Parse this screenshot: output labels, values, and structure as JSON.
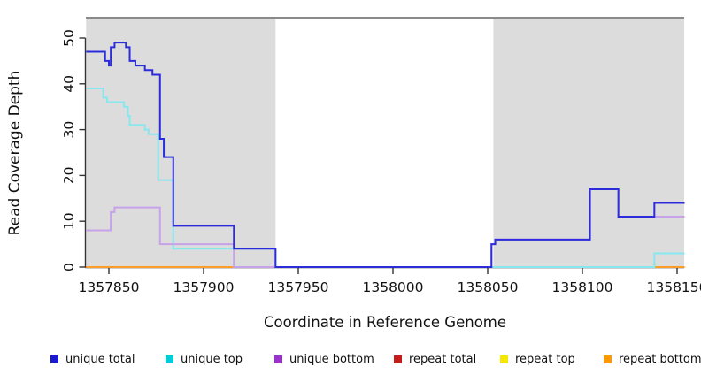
{
  "chart_data": {
    "type": "line",
    "step": true,
    "title": "",
    "xlabel": "Coordinate in Reference Genome",
    "ylabel": "Read Coverage Depth",
    "xlim": [
      1357838,
      1358154
    ],
    "ylim": [
      0,
      50
    ],
    "grid": false,
    "legend_position": "bottom",
    "x_ticks": [
      {
        "value": 1357850,
        "label": "1357850"
      },
      {
        "value": 1357900,
        "label": "1357900"
      },
      {
        "value": 1357950,
        "label": "1357950"
      },
      {
        "value": 1358000,
        "label": "1358000"
      },
      {
        "value": 1358050,
        "label": "1358050"
      },
      {
        "value": 1358100,
        "label": "1358100"
      },
      {
        "value": 1358150,
        "label": "1358150"
      }
    ],
    "y_ticks": [
      {
        "value": 0,
        "label": "0"
      },
      {
        "value": 10,
        "label": "10"
      },
      {
        "value": 20,
        "label": "20"
      },
      {
        "value": 30,
        "label": "30"
      },
      {
        "value": 40,
        "label": "40"
      },
      {
        "value": 50,
        "label": "50"
      }
    ],
    "repeat_regions": [
      [
        1357838,
        1357938
      ],
      [
        1358053,
        1358154
      ]
    ],
    "colors": {
      "background": "#ffffff",
      "region_fill": "#dcdcdc",
      "top_border": "#8a8a8a",
      "axis": "#333333",
      "text": "#111111"
    },
    "draw_order": [
      "repeat_total",
      "repeat_top",
      "repeat_bottom",
      "unique_top",
      "unique_bottom",
      "unique_total"
    ],
    "series": [
      {
        "id": "unique_total",
        "label": "unique total",
        "line_color": "#2c2cdb",
        "legend_color": "#1a1acc",
        "segments": [
          [
            [
              1357838,
              47
            ],
            [
              1357848,
              45
            ],
            [
              1357850,
              44
            ],
            [
              1357851,
              48
            ],
            [
              1357853,
              49
            ],
            [
              1357859,
              48
            ],
            [
              1357861,
              45
            ],
            [
              1357864,
              44
            ],
            [
              1357869,
              43
            ],
            [
              1357873,
              42
            ],
            [
              1357877,
              28
            ],
            [
              1357879,
              24
            ],
            [
              1357884,
              9
            ],
            [
              1357916,
              4
            ],
            [
              1357938,
              0
            ],
            [
              1358052,
              5
            ],
            [
              1358054,
              6
            ],
            [
              1358104,
              17
            ],
            [
              1358119,
              11
            ],
            [
              1358138,
              14
            ],
            [
              1358154,
              14
            ]
          ]
        ]
      },
      {
        "id": "unique_top",
        "label": "unique top",
        "line_color": "#86e7ee",
        "legend_color": "#00ccd4",
        "segments": [
          [
            [
              1357838,
              39
            ],
            [
              1357847,
              37
            ],
            [
              1357849,
              36
            ],
            [
              1357858,
              35
            ],
            [
              1357860,
              33
            ],
            [
              1357861,
              31
            ],
            [
              1357869,
              30
            ],
            [
              1357871,
              29
            ],
            [
              1357876,
              19
            ],
            [
              1357884,
              4
            ],
            [
              1357938,
              0
            ],
            [
              1358138,
              3
            ],
            [
              1358154,
              3
            ]
          ]
        ]
      },
      {
        "id": "unique_bottom",
        "label": "unique bottom",
        "line_color": "#c7a2e8",
        "legend_color": "#9933cc",
        "segments": [
          [
            [
              1357838,
              8
            ],
            [
              1357851,
              12
            ],
            [
              1357853,
              13
            ],
            [
              1357877,
              5
            ],
            [
              1357916,
              0
            ],
            [
              1358052,
              5
            ],
            [
              1358054,
              6
            ],
            [
              1358104,
              17
            ],
            [
              1358119,
              11
            ],
            [
              1358154,
              11
            ]
          ]
        ]
      },
      {
        "id": "repeat_total",
        "label": "repeat total",
        "line_color": "#cc2222",
        "legend_color": "#c41b1b",
        "segments": [
          [
            [
              1357838,
              0
            ],
            [
              1357938,
              0
            ]
          ],
          [
            [
              1358053,
              0
            ],
            [
              1358154,
              0
            ]
          ]
        ]
      },
      {
        "id": "repeat_top",
        "label": "repeat top",
        "line_color": "#f2e433",
        "legend_color": "#f5e800",
        "segments": [
          [
            [
              1357838,
              0
            ],
            [
              1357938,
              0
            ]
          ],
          [
            [
              1358053,
              0
            ],
            [
              1358154,
              0
            ]
          ]
        ]
      },
      {
        "id": "repeat_bottom",
        "label": "repeat bottom",
        "line_color": "#ff9e26",
        "legend_color": "#ff9900",
        "segments": [
          [
            [
              1357838,
              0
            ],
            [
              1357938,
              0
            ]
          ],
          [
            [
              1358053,
              0
            ],
            [
              1358154,
              0
            ]
          ]
        ]
      }
    ]
  }
}
